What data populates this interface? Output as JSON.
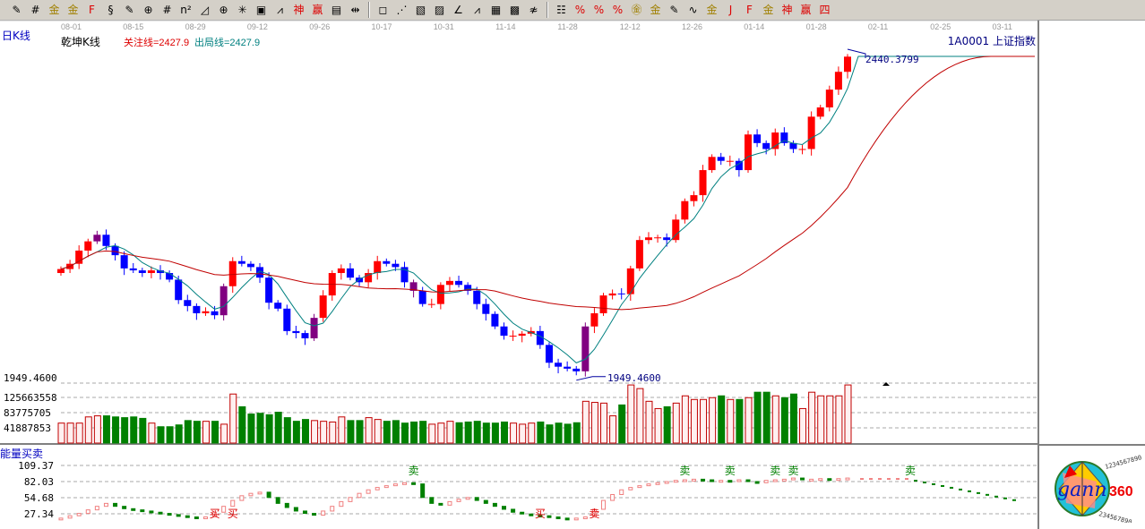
{
  "toolbar": {
    "icons": [
      {
        "name": "pen-icon",
        "glyph": "✎"
      },
      {
        "name": "grid-icon",
        "glyph": "#"
      },
      {
        "name": "gold-icon",
        "glyph": "金"
      },
      {
        "name": "gold2-icon",
        "glyph": "金"
      },
      {
        "name": "f-icon",
        "glyph": "F"
      },
      {
        "name": "spiral-icon",
        "glyph": "§"
      },
      {
        "name": "pen2-icon",
        "glyph": "✎"
      },
      {
        "name": "circle-grid-icon",
        "glyph": "⊕"
      },
      {
        "name": "lines-icon",
        "glyph": "#"
      },
      {
        "name": "n2-icon",
        "glyph": "n²"
      },
      {
        "name": "triangle-icon",
        "glyph": "◿"
      },
      {
        "name": "target-icon",
        "glyph": "⊕"
      },
      {
        "name": "star-icon",
        "glyph": "✳"
      },
      {
        "name": "square-star-icon",
        "glyph": "▣"
      },
      {
        "name": "angle-icon",
        "glyph": "⩘"
      },
      {
        "name": "shen-icon",
        "glyph": "神"
      },
      {
        "name": "ying-icon",
        "glyph": "赢"
      },
      {
        "name": "ruler-icon",
        "glyph": "▤"
      },
      {
        "name": "width-icon",
        "glyph": "⇹"
      },
      {
        "sep": true
      },
      {
        "name": "box-icon",
        "glyph": "◻"
      },
      {
        "name": "fan-icon",
        "glyph": "⋰"
      },
      {
        "name": "box-fan-icon",
        "glyph": "▧"
      },
      {
        "name": "box-fan2-icon",
        "glyph": "▨"
      },
      {
        "name": "angle-fan-icon",
        "glyph": "∠"
      },
      {
        "name": "wave-icon",
        "glyph": "⩘"
      },
      {
        "name": "grid-square-icon",
        "glyph": "▦"
      },
      {
        "name": "grid-square2-icon",
        "glyph": "▩"
      },
      {
        "name": "parallel-icon",
        "glyph": "≉"
      },
      {
        "sep": true
      },
      {
        "name": "ladder-icon",
        "glyph": "☷"
      },
      {
        "name": "percent-fan-icon",
        "glyph": "%"
      },
      {
        "name": "percent-icon",
        "glyph": "%"
      },
      {
        "name": "percent-lines-icon",
        "glyph": "%"
      },
      {
        "name": "gold-coin-icon",
        "glyph": "㊎"
      },
      {
        "name": "gold-lines-icon",
        "glyph": "金"
      },
      {
        "name": "pen-lines-icon",
        "glyph": "✎"
      },
      {
        "name": "sine-icon",
        "glyph": "∿"
      },
      {
        "name": "gold-box-icon",
        "glyph": "金"
      },
      {
        "name": "j-fan-icon",
        "glyph": "J"
      },
      {
        "name": "f-fan-icon",
        "glyph": "F"
      },
      {
        "name": "gold-fan-icon",
        "glyph": "金"
      },
      {
        "name": "shen-fan-icon",
        "glyph": "神"
      },
      {
        "name": "ying-fan-icon",
        "glyph": "赢"
      },
      {
        "name": "si-fan-icon",
        "glyph": "四"
      }
    ]
  },
  "dates": [
    "08-01",
    "08-15",
    "08-29",
    "09-12",
    "09-26",
    "10-17",
    "10-31",
    "11-14",
    "11-28",
    "12-12",
    "12-26",
    "01-14",
    "01-28",
    "02-11",
    "02-25",
    "03-11"
  ],
  "header": {
    "period": "日K线",
    "title": "乾坤K线",
    "focus_line": "关注线=2427.9",
    "exit_line": "出局线=2427.9",
    "symbol": "1A0001  上证指数"
  },
  "price": {
    "high_label": "2440.3799",
    "low_label": "1949.4600",
    "high": 2440.38,
    "low": 1949.46
  },
  "colors": {
    "up": "#ff0000",
    "down": "#0000ff",
    "special": "#800080",
    "ma_fast": "#008080",
    "ma_slow": "#c00000",
    "vol_down": "#008000"
  },
  "candles": {
    "closes": [
      2118,
      2126,
      2146,
      2160,
      2170,
      2153,
      2139,
      2119,
      2116,
      2112,
      2116,
      2112,
      2102,
      2071,
      2062,
      2051,
      2054,
      2048,
      2092,
      2130,
      2126,
      2121,
      2105,
      2067,
      2058,
      2024,
      2021,
      2013,
      2044,
      2078,
      2112,
      2119,
      2105,
      2098,
      2112,
      2130,
      2126,
      2121,
      2098,
      2085,
      2065,
      2065,
      2094,
      2100,
      2094,
      2085,
      2065,
      2050,
      2031,
      2017,
      2017,
      2020,
      2024,
      2003,
      1976,
      1970,
      1967,
      1963,
      2031,
      2051,
      2078,
      2081,
      2080,
      2119,
      2162,
      2166,
      2166,
      2162,
      2193,
      2221,
      2230,
      2268,
      2288,
      2282,
      2282,
      2268,
      2322,
      2309,
      2300,
      2325,
      2309,
      2300,
      2300,
      2349,
      2363,
      2390,
      2417,
      2440
    ],
    "special": [
      4,
      18,
      28,
      39,
      58
    ]
  },
  "volume": {
    "axis_labels": [
      "125663558",
      "83775705",
      "41887853"
    ],
    "axis_values": [
      125663558,
      83775705,
      41887853
    ],
    "values": [
      55000000.0,
      55000000.0,
      55000000.0,
      72000000.0,
      75000000.0,
      75000000.0,
      72000000.0,
      70000000.0,
      72000000.0,
      68000000.0,
      55000000.0,
      45000000.0,
      45000000.0,
      50000000.0,
      62000000.0,
      60000000.0,
      60000000.0,
      60000000.0,
      52000000.0,
      135000000.0,
      100000000.0,
      80000000.0,
      82000000.0,
      78000000.0,
      85000000.0,
      70000000.0,
      60000000.0,
      65000000.0,
      62000000.0,
      60000000.0,
      58000000.0,
      72000000.0,
      62000000.0,
      62000000.0,
      70000000.0,
      65000000.0,
      60000000.0,
      62000000.0,
      55000000.0,
      58000000.0,
      60000000.0,
      52000000.0,
      55000000.0,
      60000000.0,
      56000000.0,
      58000000.0,
      60000000.0,
      55000000.0,
      55000000.0,
      58000000.0,
      55000000.0,
      52000000.0,
      55000000.0,
      58000000.0,
      50000000.0,
      55000000.0,
      52000000.0,
      56000000.0,
      115000000.0,
      112000000.0,
      110000000.0,
      75000000.0,
      105000000.0,
      160000000.0,
      150000000.0,
      115000000.0,
      95000000.0,
      100000000.0,
      110000000.0,
      130000000.0,
      120000000.0,
      120000000.0,
      125000000.0,
      130000000.0,
      120000000.0,
      120000000.0,
      125000000.0,
      140000000.0,
      140000000.0,
      130000000.0,
      125000000.0,
      135000000.0,
      95000000.0,
      140000000.0,
      130000000.0,
      130000000.0,
      130000000.0,
      160000000.0
    ]
  },
  "indicator": {
    "name": "能量买卖",
    "axis_labels": [
      "109.37",
      "82.03",
      "54.68",
      "27.34"
    ],
    "axis_values": [
      109.37,
      82.03,
      54.68,
      27.34
    ],
    "values": [
      20,
      24,
      28,
      34,
      40,
      45,
      40,
      36,
      34,
      32,
      30,
      28,
      26,
      24,
      22,
      20,
      22,
      30,
      40,
      50,
      58,
      62,
      64,
      55,
      45,
      38,
      32,
      28,
      25,
      32,
      40,
      48,
      55,
      62,
      68,
      72,
      75,
      78,
      80,
      78,
      55,
      45,
      42,
      48,
      52,
      55,
      50,
      45,
      40,
      35,
      30,
      27,
      25,
      24,
      22,
      20,
      18,
      20,
      22,
      35,
      50,
      60,
      68,
      72,
      75,
      78,
      80,
      82,
      84,
      85,
      86,
      85,
      84,
      84,
      83,
      85,
      82,
      80,
      84,
      85,
      86,
      88,
      85,
      86,
      87,
      86,
      87,
      88
    ],
    "signals": [
      {
        "label": "买",
        "i": 17,
        "pos": "low"
      },
      {
        "label": "买",
        "i": 19,
        "pos": "low"
      },
      {
        "label": "卖",
        "i": 39,
        "pos": "high"
      },
      {
        "label": "买",
        "i": 53,
        "pos": "low"
      },
      {
        "label": "卖",
        "i": 59,
        "pos": "low"
      },
      {
        "label": "卖",
        "i": 69,
        "pos": "high"
      },
      {
        "label": "卖",
        "i": 74,
        "pos": "high"
      },
      {
        "label": "卖",
        "i": 79,
        "pos": "high"
      },
      {
        "label": "卖",
        "i": 81,
        "pos": "high"
      }
    ]
  },
  "logo": {
    "text": "gann",
    "number": "360"
  }
}
